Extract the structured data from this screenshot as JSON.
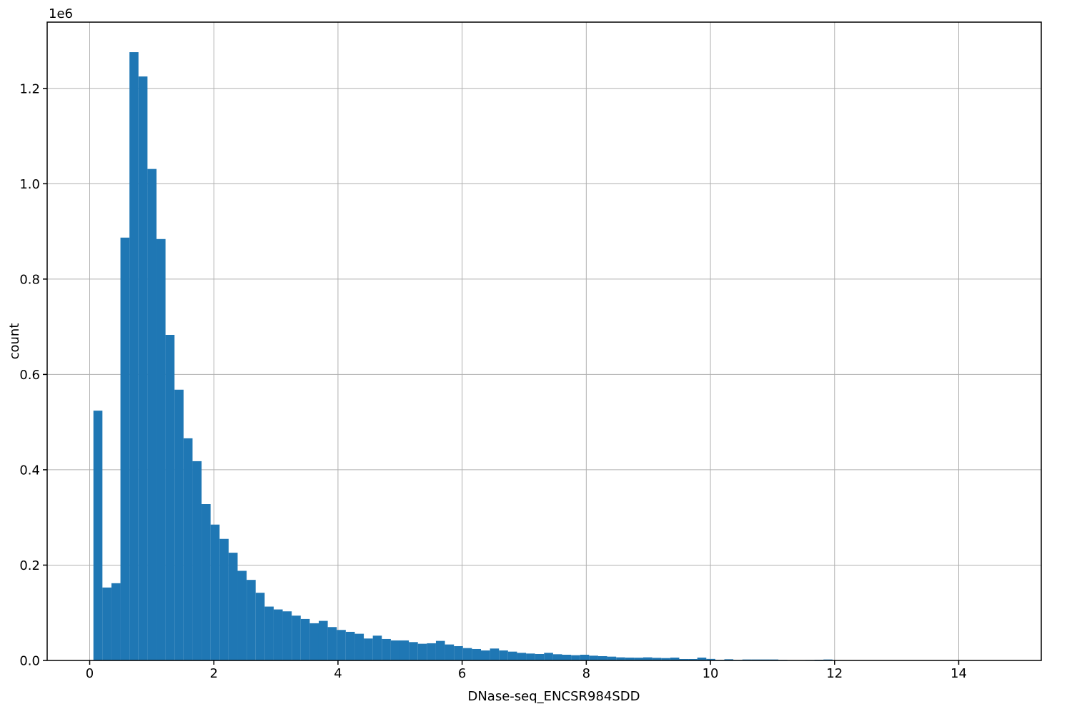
{
  "figure": {
    "offset_text": "1e6",
    "xlabel": "DNase-seq_ENCSR984SDD",
    "ylabel": "count"
  },
  "chart_data": {
    "type": "bar",
    "subtype": "histogram",
    "title": "",
    "xlabel": "DNase-seq_ENCSR984SDD",
    "ylabel": "count",
    "y_offset_label": "1e6",
    "grid": true,
    "legend": "none",
    "grid_color": "#b0b0b0",
    "bar_color": "#1f77b4",
    "spine_color": "#000000",
    "xlim": [
      -0.685,
      15.33
    ],
    "ylim": [
      0,
      1339000
    ],
    "x_ticks": [
      0,
      2,
      4,
      6,
      8,
      10,
      12,
      14
    ],
    "y_ticks": [
      {
        "value": 0,
        "label": "0.0"
      },
      {
        "value": 200000,
        "label": "0.2"
      },
      {
        "value": 400000,
        "label": "0.4"
      },
      {
        "value": 600000,
        "label": "0.6"
      },
      {
        "value": 800000,
        "label": "0.8"
      },
      {
        "value": 1000000,
        "label": "1.0"
      },
      {
        "value": 1200000,
        "label": "1.2"
      }
    ],
    "bin_start": 0.06,
    "bin_width": 0.1452,
    "counts": [
      524000,
      153000,
      162000,
      887000,
      1276000,
      1225000,
      1031000,
      884000,
      683000,
      568000,
      466000,
      418000,
      328000,
      285000,
      255000,
      226000,
      188000,
      169000,
      142000,
      113000,
      107000,
      103000,
      94000,
      87000,
      78000,
      83000,
      70000,
      64000,
      60000,
      56000,
      46000,
      52000,
      45000,
      42000,
      42000,
      38500,
      35000,
      36000,
      41000,
      33500,
      30000,
      26000,
      24000,
      21000,
      25000,
      21000,
      18500,
      16000,
      14500,
      13500,
      16000,
      13000,
      12000,
      11000,
      12000,
      10000,
      9000,
      8000,
      6500,
      6000,
      5800,
      6500,
      5500,
      5000,
      6000,
      3000,
      3000,
      6000,
      3200,
      1200,
      2500,
      1200,
      2000,
      2000,
      2000,
      2000,
      1200,
      800,
      800,
      1000,
      1500,
      2000,
      500,
      300,
      200,
      200,
      100,
      100,
      100,
      100,
      100,
      0,
      0,
      0,
      0,
      0,
      0,
      0,
      0,
      100
    ]
  }
}
